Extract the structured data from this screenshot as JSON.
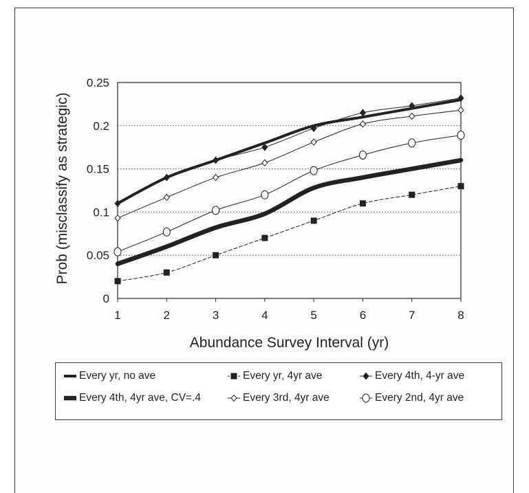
{
  "chart_data": {
    "type": "line",
    "title": "",
    "xlabel": "Abundance Survey Interval (yr)",
    "ylabel": "Prob (misclassify as strategic)",
    "x": [
      1,
      2,
      3,
      4,
      5,
      6,
      7,
      8
    ],
    "xticks": [
      "1",
      "2",
      "3",
      "4",
      "5",
      "6",
      "7",
      "8"
    ],
    "yticks": [
      "0",
      "0.05",
      "0.1",
      "0.15",
      "0.2",
      "0.25"
    ],
    "ylim": [
      0,
      0.25
    ],
    "grid": "horizontal dotted",
    "legend_position": "bottom",
    "series": [
      {
        "name": "Every yr, no ave",
        "values": [
          0.11,
          0.14,
          0.16,
          0.18,
          0.2,
          0.21,
          0.22,
          0.23
        ],
        "color": "#222222",
        "marker": "none",
        "line": "heavy"
      },
      {
        "name": "Every yr, 4yr ave",
        "values": [
          0.02,
          0.03,
          0.05,
          0.07,
          0.09,
          0.11,
          0.12,
          0.13
        ],
        "color": "#222222",
        "marker": "square",
        "line": "thin-dashed"
      },
      {
        "name": "Every 4th, 4-yr ave",
        "values": [
          0.11,
          0.14,
          0.16,
          0.175,
          0.197,
          0.215,
          0.223,
          0.232
        ],
        "color": "#222222",
        "marker": "diamond",
        "line": "thin"
      },
      {
        "name": "Every 4th, 4yr ave, CV=.4",
        "values": [
          0.04,
          0.06,
          0.082,
          0.098,
          0.128,
          0.14,
          0.15,
          0.16
        ],
        "color": "#222222",
        "marker": "none",
        "line": "very-heavy"
      },
      {
        "name": "Every 3rd, 4yr ave",
        "values": [
          0.093,
          0.117,
          0.14,
          0.157,
          0.181,
          0.202,
          0.211,
          0.218
        ],
        "color": "#222222",
        "marker": "open-diamond",
        "line": "thin"
      },
      {
        "name": "Every 2nd, 4yr ave",
        "values": [
          0.054,
          0.077,
          0.102,
          0.12,
          0.148,
          0.166,
          0.18,
          0.189
        ],
        "color": "#222222",
        "marker": "open-circle",
        "line": "thin"
      }
    ]
  }
}
